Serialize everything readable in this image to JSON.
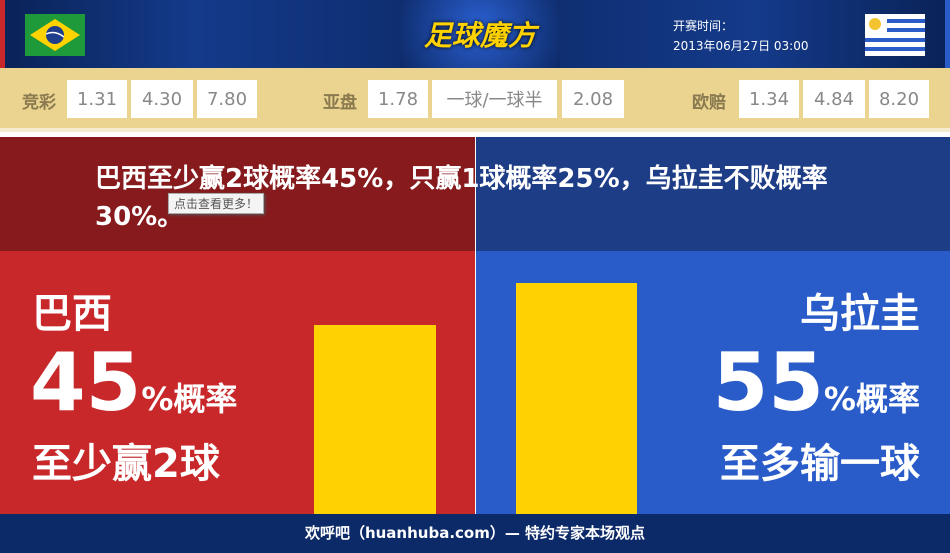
{
  "header": {
    "logo": "足球魔方",
    "time_label": "开赛时间：",
    "time_value": "2013年06月27日 03:00",
    "home_flag": "brazil-flag",
    "away_flag": "uruguay-flag"
  },
  "odds": {
    "jingcai": {
      "label": "竞彩",
      "values": [
        "1.31",
        "4.30",
        "7.80"
      ]
    },
    "yapan": {
      "label": "亚盘",
      "values": [
        "1.78",
        "一球/一球半",
        "2.08"
      ]
    },
    "oupei": {
      "label": "欧赔",
      "values": [
        "1.34",
        "4.84",
        "8.20"
      ]
    }
  },
  "headline": "巴西至少赢2球概率45%，只赢1球概率25%，乌拉圭不败概率30%。",
  "tooltip": "点击查看更多！",
  "home": {
    "team": "巴西",
    "pct": "45",
    "pct_suffix": "%概率",
    "desc": "至少赢2球",
    "bar_fraction": 0.45
  },
  "away": {
    "team": "乌拉圭",
    "pct": "55",
    "pct_suffix": "%概率",
    "desc": "至多输一球",
    "bar_fraction": 0.55
  },
  "colors": {
    "home_dark": "#861a1c",
    "home": "#c8282a",
    "away_dark": "#1e3d87",
    "away": "#2a5cc9",
    "bar": "#ffd200"
  },
  "footer": "欢呼吧（huanhuba.com）— 特约专家本场观点"
}
